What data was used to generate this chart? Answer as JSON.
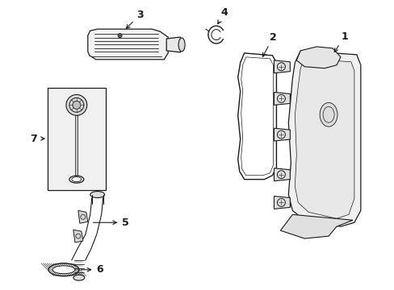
{
  "background_color": "#ffffff",
  "line_color": "#1a1a1a",
  "fig_width": 4.89,
  "fig_height": 3.6,
  "dpi": 100,
  "label_fontsize": 9,
  "label_fontweight": "bold",
  "part1_label": "1",
  "part2_label": "2",
  "part3_label": "3",
  "part4_label": "4",
  "part5_label": "5",
  "part6_label": "6",
  "part7_label": "7"
}
